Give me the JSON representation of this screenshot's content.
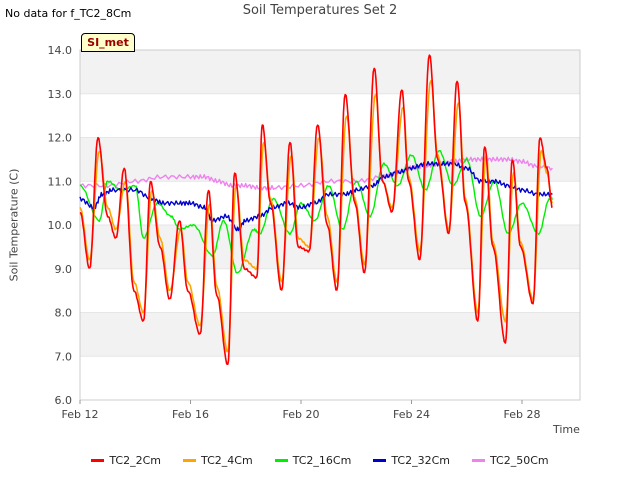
{
  "header": {
    "nodata_text": "No data for f_TC2_8Cm",
    "site_badge": "SI_met"
  },
  "chart_data": {
    "type": "line",
    "title": "Soil Temperatures Set 2",
    "xlabel": "Time",
    "ylabel": "Soil Temperature (C)",
    "x_unit": "days since Feb 12",
    "xlim": [
      0,
      18.1
    ],
    "ylim": [
      6.0,
      14.0
    ],
    "x_tick_labels": [
      {
        "x": 0,
        "label": "Feb 12"
      },
      {
        "x": 4,
        "label": "Feb 16"
      },
      {
        "x": 8,
        "label": "Feb 20"
      },
      {
        "x": 12,
        "label": "Feb 24"
      },
      {
        "x": 16,
        "label": "Feb 28"
      }
    ],
    "y_ticks": [
      6.0,
      7.0,
      8.0,
      9.0,
      10.0,
      11.0,
      12.0,
      13.0,
      14.0
    ],
    "grid": "horizontal bands",
    "legend_position": "bottom",
    "series": [
      {
        "name": "TC2_2Cm",
        "color": "#ff0000",
        "x": [
          0.0,
          0.35,
          0.65,
          1.0,
          1.3,
          1.6,
          1.95,
          2.3,
          2.55,
          2.9,
          3.25,
          3.6,
          3.9,
          4.35,
          4.65,
          4.95,
          5.35,
          5.6,
          5.95,
          6.4,
          6.6,
          6.9,
          7.3,
          7.6,
          7.9,
          8.3,
          8.6,
          8.95,
          9.3,
          9.6,
          9.95,
          10.3,
          10.65,
          10.95,
          11.3,
          11.65,
          11.9,
          12.3,
          12.65,
          12.95,
          13.35,
          13.65,
          13.95,
          14.4,
          14.65,
          14.95,
          15.4,
          15.65,
          15.95,
          16.4,
          16.65,
          16.9,
          17.1
        ],
        "y": [
          10.3,
          9.0,
          12.0,
          10.2,
          9.7,
          11.3,
          8.5,
          7.8,
          11.0,
          9.5,
          8.3,
          10.1,
          8.5,
          7.5,
          10.8,
          8.4,
          6.8,
          11.2,
          9.0,
          8.8,
          12.3,
          10.5,
          8.5,
          11.9,
          9.5,
          9.4,
          12.3,
          10.0,
          8.5,
          13.0,
          10.5,
          8.9,
          13.6,
          11.0,
          10.3,
          13.1,
          11.0,
          9.2,
          13.9,
          11.5,
          9.8,
          13.3,
          10.5,
          7.8,
          11.8,
          9.5,
          7.3,
          11.5,
          9.5,
          8.2,
          12.0,
          11.3,
          10.4
        ]
      },
      {
        "name": "TC2_4Cm",
        "color": "#ffa500",
        "x": [
          0.0,
          0.35,
          0.7,
          1.0,
          1.3,
          1.65,
          1.95,
          2.3,
          2.6,
          2.9,
          3.25,
          3.65,
          3.9,
          4.35,
          4.7,
          4.95,
          5.35,
          5.65,
          5.95,
          6.4,
          6.65,
          6.9,
          7.3,
          7.65,
          7.9,
          8.3,
          8.65,
          8.95,
          9.3,
          9.65,
          9.95,
          10.3,
          10.7,
          10.95,
          11.3,
          11.7,
          11.9,
          12.3,
          12.7,
          12.95,
          13.35,
          13.7,
          13.95,
          14.4,
          14.7,
          14.95,
          15.4,
          15.7,
          15.95,
          16.4,
          16.7,
          16.9,
          17.1
        ],
        "y": [
          10.4,
          9.2,
          11.7,
          10.4,
          9.9,
          11.0,
          8.7,
          8.0,
          10.8,
          9.7,
          8.5,
          9.9,
          8.7,
          7.7,
          10.5,
          8.6,
          7.1,
          10.9,
          9.2,
          9.0,
          11.9,
          10.6,
          8.7,
          11.6,
          9.7,
          9.5,
          12.0,
          10.2,
          8.7,
          12.5,
          10.6,
          9.1,
          13.0,
          11.0,
          10.4,
          12.7,
          11.1,
          9.4,
          13.3,
          11.6,
          9.9,
          12.8,
          10.6,
          8.0,
          11.6,
          9.6,
          7.8,
          11.2,
          9.6,
          8.3,
          11.7,
          11.2,
          10.5
        ]
      },
      {
        "name": "TC2_16Cm",
        "color": "#00ee00",
        "x": [
          0.0,
          0.7,
          1.0,
          1.5,
          2.0,
          2.3,
          2.8,
          3.3,
          3.6,
          4.1,
          4.8,
          5.2,
          5.7,
          6.3,
          6.5,
          7.0,
          7.6,
          8.0,
          8.5,
          9.0,
          9.5,
          10.0,
          10.5,
          11.0,
          11.5,
          12.0,
          12.5,
          13.0,
          13.5,
          14.0,
          14.5,
          15.0,
          15.5,
          16.0,
          16.6,
          17.0,
          17.1
        ],
        "y": [
          10.9,
          10.1,
          11.0,
          10.8,
          10.9,
          9.7,
          10.5,
          10.2,
          9.9,
          10.0,
          9.3,
          10.1,
          8.9,
          9.9,
          9.8,
          10.6,
          9.8,
          10.5,
          10.1,
          10.9,
          9.9,
          11.0,
          10.2,
          11.4,
          10.9,
          11.6,
          10.8,
          11.7,
          10.9,
          11.5,
          10.2,
          11.0,
          9.8,
          10.5,
          9.8,
          10.6,
          10.6
        ]
      },
      {
        "name": "TC2_32Cm",
        "color": "#0000cc",
        "x": [
          0.0,
          0.5,
          0.8,
          1.2,
          2.0,
          2.6,
          3.0,
          3.6,
          4.0,
          4.5,
          4.8,
          5.3,
          5.7,
          6.0,
          6.5,
          7.0,
          7.5,
          8.0,
          8.5,
          9.0,
          9.6,
          10.0,
          10.6,
          11.0,
          11.5,
          12.0,
          12.5,
          13.0,
          13.5,
          14.0,
          14.5,
          15.0,
          15.5,
          16.0,
          16.6,
          17.1
        ],
        "y": [
          10.6,
          10.4,
          10.7,
          10.8,
          10.8,
          10.6,
          10.5,
          10.5,
          10.5,
          10.4,
          10.1,
          10.2,
          9.9,
          10.1,
          10.2,
          10.4,
          10.5,
          10.4,
          10.5,
          10.7,
          10.7,
          10.8,
          10.9,
          11.1,
          11.2,
          11.3,
          11.4,
          11.4,
          11.4,
          11.3,
          11.0,
          11.0,
          10.9,
          10.8,
          10.7,
          10.7
        ]
      },
      {
        "name": "TC2_50Cm",
        "color": "#ee82ee",
        "x": [
          0.0,
          1.0,
          2.0,
          3.0,
          4.0,
          4.5,
          5.0,
          5.5,
          6.0,
          6.5,
          7.0,
          8.0,
          9.0,
          10.0,
          11.0,
          11.5,
          12.0,
          12.5,
          13.0,
          13.5,
          14.0,
          14.5,
          15.0,
          15.5,
          16.0,
          16.5,
          17.1
        ],
        "y": [
          10.9,
          10.9,
          11.0,
          11.1,
          11.1,
          11.1,
          11.0,
          10.9,
          10.9,
          10.85,
          10.85,
          10.9,
          11.0,
          11.0,
          11.1,
          11.2,
          11.3,
          11.35,
          11.4,
          11.45,
          11.5,
          11.5,
          11.5,
          11.5,
          11.45,
          11.35,
          11.3
        ]
      }
    ]
  }
}
